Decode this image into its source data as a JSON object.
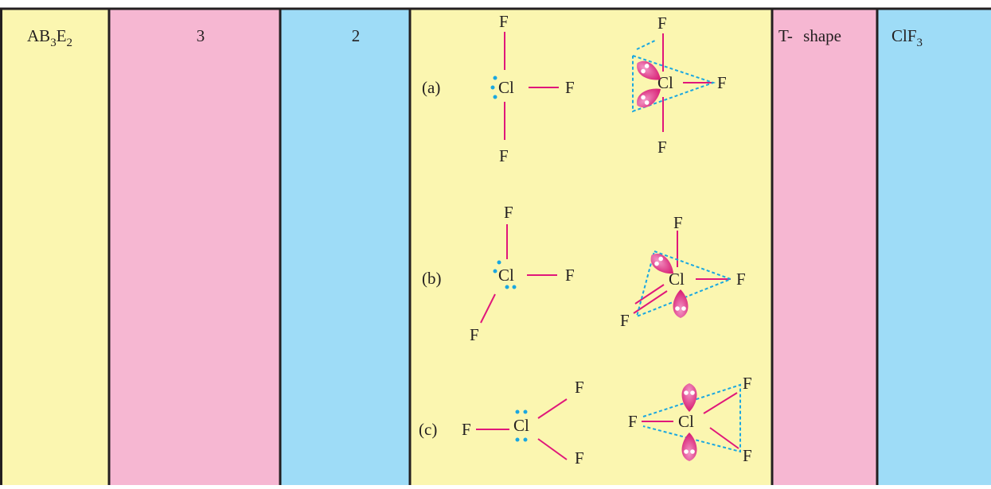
{
  "row": {
    "type": [
      "AB",
      "3",
      "E",
      "2"
    ],
    "bond_pairs": "3",
    "lone_pairs": "2",
    "structures": [
      {
        "label": "(a)",
        "left": [
          "F",
          "Cl",
          "F",
          "F"
        ],
        "right": [
          "F",
          "Cl",
          "F",
          "F"
        ]
      },
      {
        "label": "(b)",
        "left": [
          "F",
          "Cl",
          "F",
          "F"
        ],
        "right": [
          "F",
          "Cl",
          "F",
          "F"
        ]
      },
      {
        "label": "(c)",
        "left": [
          "F",
          "Cl",
          "F",
          "F"
        ],
        "right": [
          "F",
          "Cl",
          "F",
          "F"
        ]
      }
    ],
    "shape": "T- shape",
    "example": [
      "ClF",
      "3"
    ]
  }
}
